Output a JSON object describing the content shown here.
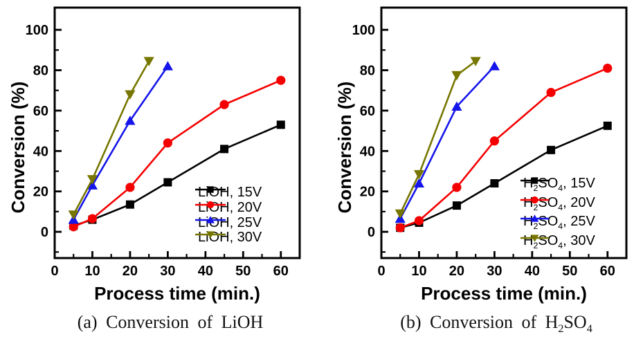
{
  "figure": {
    "background": "#ffffff"
  },
  "chart_data": [
    {
      "type": "line",
      "panel_label": "a",
      "caption": "(a) Conversion of LiOH",
      "caption_rich": [
        {
          "t": "(a) Conversion of LiOH"
        }
      ],
      "xlabel": "Process time (min.)",
      "ylabel": "Conversion (%)",
      "xlim": [
        0,
        65
      ],
      "ylim": [
        -13,
        111
      ],
      "x_major_ticks": [
        0,
        10,
        20,
        30,
        40,
        50,
        60
      ],
      "x_minor_ticks": [
        5,
        15,
        25,
        35,
        45,
        55,
        65
      ],
      "y_major_ticks": [
        0,
        20,
        40,
        60,
        80,
        100
      ],
      "y_minor_ticks": [
        -10,
        10,
        30,
        50,
        70,
        90
      ],
      "grid": false,
      "legend_position": "lower-right",
      "series": [
        {
          "name": "LiOH, 15V",
          "name_rich": [
            {
              "t": "LiOH, 15V"
            }
          ],
          "color": "#000000",
          "marker": "square",
          "x": [
            5,
            10,
            20,
            30,
            45,
            60
          ],
          "y": [
            3,
            6,
            13.5,
            24.5,
            41,
            53
          ]
        },
        {
          "name": "LiOH, 20V",
          "name_rich": [
            {
              "t": "LiOH, 20V"
            }
          ],
          "color": "#F50000",
          "marker": "circle",
          "x": [
            5,
            10,
            20,
            30,
            45,
            60
          ],
          "y": [
            2.5,
            6.5,
            22,
            44,
            63,
            75
          ]
        },
        {
          "name": "LiOH, 25V",
          "name_rich": [
            {
              "t": "LiOH, 25V"
            }
          ],
          "color": "#1414EB",
          "marker": "triangle-up",
          "x": [
            5,
            10,
            20,
            30
          ],
          "y": [
            6,
            23,
            55,
            82
          ]
        },
        {
          "name": "LiOH, 30V",
          "name_rich": [
            {
              "t": "LiOH, 30V"
            }
          ],
          "color": "#767600",
          "marker": "triangle-down",
          "x": [
            5,
            10,
            20,
            25
          ],
          "y": [
            8.5,
            26,
            68,
            84.5
          ]
        }
      ]
    },
    {
      "type": "line",
      "panel_label": "b",
      "caption": "(b) Conversion of H2SO4",
      "caption_rich": [
        {
          "t": "(b) Conversion of H"
        },
        {
          "t": "2",
          "sub": true
        },
        {
          "t": "SO"
        },
        {
          "t": "4",
          "sub": true
        }
      ],
      "xlabel": "Process time (min.)",
      "ylabel": "Conversion (%)",
      "xlim": [
        0,
        65
      ],
      "ylim": [
        -13,
        111
      ],
      "x_major_ticks": [
        0,
        10,
        20,
        30,
        40,
        50,
        60
      ],
      "x_minor_ticks": [
        5,
        15,
        25,
        35,
        45,
        55,
        65
      ],
      "y_major_ticks": [
        0,
        20,
        40,
        60,
        80,
        100
      ],
      "y_minor_ticks": [
        -10,
        10,
        30,
        50,
        70,
        90
      ],
      "grid": false,
      "legend_position": "lower-right",
      "series": [
        {
          "name": "H2SO4, 15V",
          "name_rich": [
            {
              "t": "H"
            },
            {
              "t": "2",
              "sub": true
            },
            {
              "t": "SO"
            },
            {
              "t": "4",
              "sub": true
            },
            {
              "t": ", 15V"
            }
          ],
          "color": "#000000",
          "marker": "square",
          "x": [
            5,
            10,
            20,
            30,
            45,
            60
          ],
          "y": [
            2,
            4.5,
            13,
            24,
            40.5,
            52.5
          ]
        },
        {
          "name": "H2SO4, 20V",
          "name_rich": [
            {
              "t": "H"
            },
            {
              "t": "2",
              "sub": true
            },
            {
              "t": "SO"
            },
            {
              "t": "4",
              "sub": true
            },
            {
              "t": ", 20V"
            }
          ],
          "color": "#F50000",
          "marker": "circle",
          "x": [
            5,
            10,
            20,
            30,
            45,
            60
          ],
          "y": [
            2,
            5.5,
            22,
            45,
            69,
            81
          ]
        },
        {
          "name": "H2SO4, 25V",
          "name_rich": [
            {
              "t": "H"
            },
            {
              "t": "2",
              "sub": true
            },
            {
              "t": "SO"
            },
            {
              "t": "4",
              "sub": true
            },
            {
              "t": ", 25V"
            }
          ],
          "color": "#1414EB",
          "marker": "triangle-up",
          "x": [
            5,
            10,
            20,
            30
          ],
          "y": [
            6.5,
            24,
            62,
            82
          ]
        },
        {
          "name": "H2SO4, 30V",
          "name_rich": [
            {
              "t": "H"
            },
            {
              "t": "2",
              "sub": true
            },
            {
              "t": "SO"
            },
            {
              "t": "4",
              "sub": true
            },
            {
              "t": ", 30V"
            }
          ],
          "color": "#767600",
          "marker": "triangle-down",
          "x": [
            5,
            10,
            20,
            25
          ],
          "y": [
            9,
            28.5,
            77.5,
            84.5
          ]
        }
      ]
    }
  ]
}
